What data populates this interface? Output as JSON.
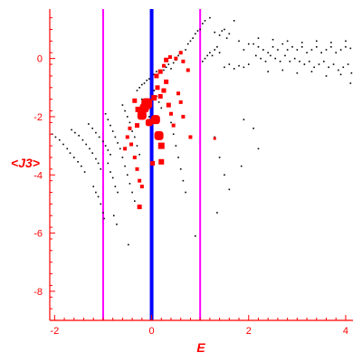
{
  "chart_data": {
    "type": "scatter",
    "xlabel": "E",
    "ylabel": "<J3>",
    "xlim": [
      -2.1,
      4.15
    ],
    "ylim": [
      -9.0,
      1.7
    ],
    "x_ticks": [
      -2,
      0,
      2,
      4
    ],
    "y_ticks": [
      0,
      -2,
      -4,
      -6,
      -8
    ],
    "axis_color": "#ff0000",
    "vertical_lines": [
      {
        "x": -1,
        "color": "#ff00ff"
      },
      {
        "x": 0,
        "color": "#0000ff"
      },
      {
        "x": 1,
        "color": "#ff00ff"
      }
    ],
    "series": [
      {
        "color": "#000000",
        "marker": "dot",
        "points": [
          [
            -2.05,
            -2.6
          ],
          [
            -1.98,
            -2.7
          ],
          [
            -1.9,
            -2.8
          ],
          [
            -1.82,
            -2.95
          ],
          [
            -1.74,
            -3.1
          ],
          [
            -1.68,
            -3.25
          ],
          [
            -1.6,
            -3.4
          ],
          [
            -1.52,
            -3.55
          ],
          [
            -1.45,
            -3.7
          ],
          [
            -1.38,
            -3.9
          ],
          [
            -1.65,
            -2.45
          ],
          [
            -1.58,
            -2.55
          ],
          [
            -1.5,
            -2.65
          ],
          [
            -1.42,
            -2.8
          ],
          [
            -1.35,
            -2.95
          ],
          [
            -1.28,
            -3.1
          ],
          [
            -1.22,
            -3.25
          ],
          [
            -1.15,
            -3.45
          ],
          [
            -1.1,
            -3.6
          ],
          [
            -1.05,
            -3.8
          ],
          [
            -1.3,
            -2.25
          ],
          [
            -1.22,
            -2.4
          ],
          [
            -1.15,
            -2.55
          ],
          [
            -1.08,
            -2.7
          ],
          [
            -1.0,
            -2.85
          ],
          [
            -0.95,
            -3.0
          ],
          [
            -0.9,
            -3.15
          ],
          [
            -0.85,
            -3.3
          ],
          [
            -1.2,
            -4.4
          ],
          [
            -1.15,
            -4.6
          ],
          [
            -1.1,
            -4.75
          ],
          [
            -1.05,
            -5.0
          ],
          [
            -1.0,
            -5.3
          ],
          [
            -0.98,
            -5.5
          ],
          [
            -0.95,
            -1.9
          ],
          [
            -0.9,
            -2.1
          ],
          [
            -0.85,
            -2.3
          ],
          [
            -0.8,
            -2.5
          ],
          [
            -0.75,
            -2.7
          ],
          [
            -0.7,
            -2.9
          ],
          [
            -0.65,
            -3.1
          ],
          [
            -0.9,
            -3.6
          ],
          [
            -0.85,
            -3.9
          ],
          [
            -0.8,
            -4.1
          ],
          [
            -0.75,
            -4.4
          ],
          [
            -0.7,
            -4.6
          ],
          [
            -0.78,
            -5.4
          ],
          [
            -0.72,
            -5.7
          ],
          [
            -0.6,
            -1.6
          ],
          [
            -0.55,
            -1.8
          ],
          [
            -0.5,
            -2.0
          ],
          [
            -0.45,
            -2.2
          ],
          [
            -0.4,
            -2.5
          ],
          [
            -0.35,
            -2.7
          ],
          [
            -0.3,
            -3.0
          ],
          [
            -0.25,
            -3.3
          ],
          [
            -0.6,
            -3.4
          ],
          [
            -0.55,
            -3.7
          ],
          [
            -0.5,
            -4.0
          ],
          [
            -0.45,
            -4.3
          ],
          [
            -0.4,
            -4.6
          ],
          [
            -0.35,
            -4.9
          ],
          [
            -0.48,
            -6.4
          ],
          [
            -0.3,
            -1.1
          ],
          [
            -0.25,
            -1.0
          ],
          [
            -0.2,
            -0.9
          ],
          [
            -0.15,
            -0.85
          ],
          [
            -0.1,
            -0.75
          ],
          [
            -0.05,
            -0.7
          ],
          [
            0.05,
            -0.55
          ],
          [
            0.1,
            -0.45
          ],
          [
            -0.2,
            -1.4
          ],
          [
            -0.15,
            -1.6
          ],
          [
            -0.1,
            -1.8
          ],
          [
            -0.05,
            -2.0
          ],
          [
            0.05,
            -1.1
          ],
          [
            0.1,
            -1.3
          ],
          [
            0.15,
            -1.5
          ],
          [
            0.2,
            -1.7
          ],
          [
            0.25,
            -0.4
          ],
          [
            0.3,
            -0.3
          ],
          [
            0.35,
            -0.2
          ],
          [
            0.4,
            -0.35
          ],
          [
            0.45,
            -0.15
          ],
          [
            0.5,
            -0.05
          ],
          [
            0.55,
            0.1
          ],
          [
            0.6,
            0.2
          ],
          [
            0.4,
            -2.2
          ],
          [
            0.45,
            -2.6
          ],
          [
            0.5,
            -3.0
          ],
          [
            0.55,
            -3.4
          ],
          [
            0.6,
            -3.8
          ],
          [
            0.65,
            -4.2
          ],
          [
            0.7,
            -4.6
          ],
          [
            0.7,
            0.3
          ],
          [
            0.75,
            0.5
          ],
          [
            0.8,
            0.6
          ],
          [
            0.85,
            0.7
          ],
          [
            0.9,
            0.85
          ],
          [
            0.95,
            0.95
          ],
          [
            1.0,
            1.0
          ],
          [
            1.05,
            1.2
          ],
          [
            1.1,
            1.3
          ],
          [
            1.2,
            1.4
          ],
          [
            1.05,
            -0.1
          ],
          [
            1.1,
            0.0
          ],
          [
            1.15,
            0.1
          ],
          [
            1.2,
            0.2
          ],
          [
            1.25,
            0.1
          ],
          [
            1.3,
            0.3
          ],
          [
            1.35,
            0.4
          ],
          [
            1.4,
            0.2
          ],
          [
            1.3,
            0.9
          ],
          [
            1.4,
            0.8
          ],
          [
            1.45,
            0.95
          ],
          [
            1.5,
            1.0
          ],
          [
            1.55,
            0.7
          ],
          [
            1.6,
            0.85
          ],
          [
            1.7,
            1.3
          ],
          [
            1.8,
            0.6
          ],
          [
            1.5,
            -0.3
          ],
          [
            1.6,
            -0.2
          ],
          [
            1.7,
            -0.35
          ],
          [
            1.8,
            -0.25
          ],
          [
            1.9,
            -0.3
          ],
          [
            2.0,
            -0.2
          ],
          [
            1.9,
            0.3
          ],
          [
            2.0,
            0.5
          ],
          [
            1.3,
            -2.7
          ],
          [
            1.4,
            -3.4
          ],
          [
            1.5,
            -4.0
          ],
          [
            1.6,
            -4.5
          ],
          [
            1.85,
            -3.7
          ],
          [
            2.2,
            -3.1
          ],
          [
            1.35,
            -5.3
          ],
          [
            2.1,
            0.5
          ],
          [
            2.2,
            0.4
          ],
          [
            2.3,
            0.3
          ],
          [
            2.4,
            0.2
          ],
          [
            2.5,
            0.4
          ],
          [
            2.6,
            0.3
          ],
          [
            2.7,
            0.5
          ],
          [
            2.8,
            0.3
          ],
          [
            2.9,
            0.4
          ],
          [
            3.0,
            0.3
          ],
          [
            2.15,
            0.1
          ],
          [
            2.25,
            0.0
          ],
          [
            2.35,
            -0.1
          ],
          [
            2.45,
            0.1
          ],
          [
            2.55,
            0.0
          ],
          [
            2.65,
            -0.1
          ],
          [
            2.75,
            0.1
          ],
          [
            2.85,
            -0.1
          ],
          [
            2.95,
            0.0
          ],
          [
            3.05,
            -0.1
          ],
          [
            3.1,
            0.4
          ],
          [
            3.2,
            0.2
          ],
          [
            3.3,
            0.3
          ],
          [
            3.4,
            0.4
          ],
          [
            3.5,
            0.2
          ],
          [
            3.6,
            0.3
          ],
          [
            3.7,
            0.4
          ],
          [
            3.8,
            0.2
          ],
          [
            3.9,
            0.3
          ],
          [
            4.0,
            0.4
          ],
          [
            4.1,
            0.35
          ],
          [
            3.15,
            -0.2
          ],
          [
            3.25,
            -0.1
          ],
          [
            3.35,
            -0.3
          ],
          [
            3.45,
            -0.2
          ],
          [
            3.55,
            -0.1
          ],
          [
            3.65,
            -0.3
          ],
          [
            3.75,
            -0.2
          ],
          [
            3.85,
            -0.4
          ],
          [
            3.95,
            -0.3
          ],
          [
            4.05,
            -0.2
          ],
          [
            4.12,
            -0.5
          ],
          [
            2.2,
            0.7
          ],
          [
            2.5,
            0.65
          ],
          [
            2.8,
            0.6
          ],
          [
            3.1,
            0.55
          ],
          [
            3.4,
            0.6
          ],
          [
            3.7,
            0.55
          ],
          [
            4.0,
            0.6
          ],
          [
            2.4,
            -0.45
          ],
          [
            2.7,
            -0.4
          ],
          [
            3.0,
            -0.5
          ],
          [
            3.3,
            -0.45
          ],
          [
            3.6,
            -0.6
          ],
          [
            3.9,
            -0.55
          ],
          [
            4.1,
            -0.85
          ],
          [
            0.9,
            -6.1
          ],
          [
            1.9,
            -2.1
          ],
          [
            2.1,
            -2.4
          ]
        ]
      },
      {
        "color": "#ff0000",
        "marker": "square",
        "points": [
          [
            -0.35,
            -1.45,
            5
          ],
          [
            -0.28,
            -1.75,
            6
          ],
          [
            -0.22,
            -2.0,
            6
          ],
          [
            -0.3,
            -2.3,
            5
          ],
          [
            -0.45,
            -2.4,
            4
          ],
          [
            -0.5,
            -2.7,
            4
          ],
          [
            -0.42,
            -2.95,
            4
          ],
          [
            -0.55,
            -3.1,
            4
          ],
          [
            -0.35,
            -3.4,
            4
          ],
          [
            -0.3,
            -3.8,
            4
          ],
          [
            -0.25,
            -4.2,
            4
          ],
          [
            -0.2,
            -4.4,
            4
          ],
          [
            -0.25,
            -5.1,
            5
          ],
          [
            -0.15,
            -1.7,
            10
          ],
          [
            -0.1,
            -1.55,
            12
          ],
          [
            -0.2,
            -1.95,
            10
          ],
          [
            -0.05,
            -2.2,
            8
          ],
          [
            0.08,
            -2.1,
            10
          ],
          [
            0.15,
            -2.65,
            10
          ],
          [
            0.2,
            -3.0,
            7
          ],
          [
            0.2,
            -3.55,
            6
          ],
          [
            0.02,
            -3.6,
            5
          ],
          [
            0.05,
            -1.35,
            6
          ],
          [
            0.12,
            -1.0,
            5
          ],
          [
            0.18,
            -1.3,
            5
          ],
          [
            0.1,
            -0.6,
            5
          ],
          [
            0.18,
            -0.45,
            5
          ],
          [
            0.25,
            -0.25,
            4
          ],
          [
            0.3,
            -0.05,
            5
          ],
          [
            0.38,
            0.05,
            4
          ],
          [
            0.5,
            0.0,
            4
          ],
          [
            0.6,
            0.2,
            4
          ],
          [
            0.65,
            -0.1,
            4
          ],
          [
            0.35,
            -1.6,
            5
          ],
          [
            0.4,
            -1.9,
            4
          ],
          [
            0.45,
            -2.3,
            4
          ],
          [
            0.55,
            -1.2,
            4
          ],
          [
            0.6,
            -1.5,
            4
          ],
          [
            0.65,
            -2.0,
            4
          ],
          [
            0.25,
            -1.1,
            5
          ],
          [
            0.3,
            -0.8,
            5
          ],
          [
            0.75,
            -0.4,
            4
          ],
          [
            0.8,
            -2.7,
            4
          ],
          [
            1.3,
            -2.75,
            3
          ]
        ]
      }
    ]
  }
}
